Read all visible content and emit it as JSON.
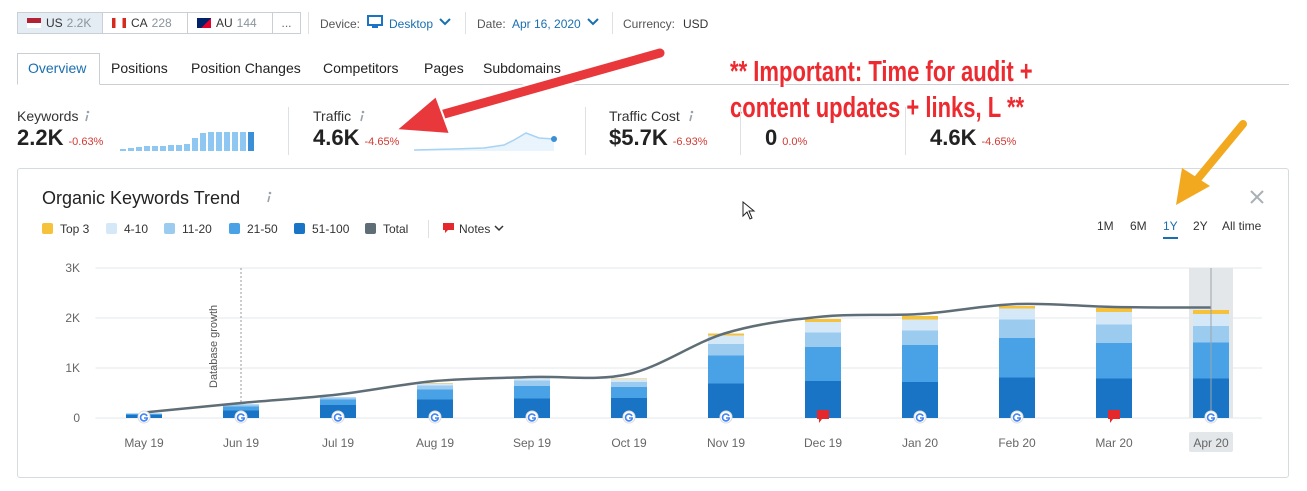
{
  "top_bar": {
    "countries": [
      {
        "code": "US",
        "count": "2.2K"
      },
      {
        "code": "CA",
        "count": "228"
      },
      {
        "code": "AU",
        "count": "144"
      }
    ],
    "more": "...",
    "device_label": "Device:",
    "device": "Desktop",
    "date_label": "Date:",
    "date": "Apr 16, 2020",
    "currency_label": "Currency:",
    "currency": "USD"
  },
  "tabs": [
    "Overview",
    "Positions",
    "Position Changes",
    "Competitors",
    "Pages",
    "Subdomains"
  ],
  "metrics": [
    {
      "label": "Keywords",
      "value": "2.2K",
      "change": "-0.63%"
    },
    {
      "label": "Traffic",
      "value": "4.6K",
      "change": "-4.65%"
    },
    {
      "label": "Traffic Cost",
      "value": "$5.7K",
      "change": "-6.93%"
    },
    {
      "value": "0",
      "change": "0.0%"
    },
    {
      "value": "4.6K",
      "change": "-4.65%"
    }
  ],
  "annotation": [
    "** Important: Time for audit +",
    "content updates + links, L **"
  ],
  "chart_data": {
    "type": "bar",
    "stacked": true,
    "title": "Organic Keywords Trend",
    "notes_label": "Notes",
    "ranges": [
      "1M",
      "6M",
      "1Y",
      "2Y",
      "All time"
    ],
    "active_range": 2,
    "categories": [
      "May 19",
      "Jun 19",
      "Jul 19",
      "Aug 19",
      "Sep 19",
      "Oct 19",
      "Nov 19",
      "Dec 19",
      "Jan 20",
      "Feb 20",
      "Mar 20",
      "Apr 20"
    ],
    "highlight": "Apr 20",
    "annotations": [
      {
        "text": "Database growth",
        "x": "Jun 19"
      }
    ],
    "series": [
      {
        "name": "Top 3",
        "color": "#f7c23b",
        "values": [
          0,
          0,
          0,
          10,
          10,
          10,
          40,
          60,
          70,
          50,
          80,
          80
        ]
      },
      {
        "name": "4-10",
        "color": "#d4e8f8",
        "values": [
          5,
          10,
          10,
          40,
          60,
          60,
          170,
          210,
          220,
          220,
          250,
          240
        ]
      },
      {
        "name": "11-20",
        "color": "#9ccbf0",
        "values": [
          10,
          40,
          40,
          80,
          110,
          100,
          230,
          290,
          290,
          370,
          370,
          330
        ]
      },
      {
        "name": "21-50",
        "color": "#4aa2e6",
        "values": [
          25,
          80,
          110,
          200,
          250,
          220,
          560,
          680,
          740,
          790,
          710,
          720
        ]
      },
      {
        "name": "51-100",
        "color": "#1a74c6",
        "values": [
          60,
          150,
          260,
          370,
          390,
          400,
          690,
          740,
          720,
          810,
          790,
          790
        ]
      },
      {
        "name": "Total",
        "type": "line",
        "color": "#5f6e76",
        "values": [
          110,
          300,
          470,
          740,
          820,
          880,
          1700,
          2030,
          2080,
          2280,
          2220,
          2210
        ]
      }
    ],
    "ylim": [
      0,
      3000
    ],
    "yticks": [
      0,
      {
        "value": 1000,
        "label": "1K"
      },
      {
        "value": 2000,
        "label": "2K"
      },
      {
        "value": 3000,
        "label": "3K"
      }
    ],
    "grid": true
  }
}
